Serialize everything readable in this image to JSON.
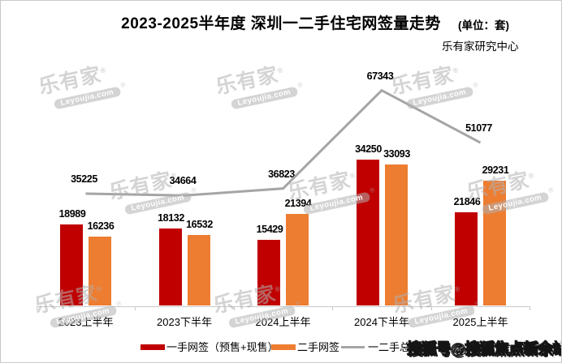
{
  "header": {
    "title": "2023-2025半年度 深圳一二手住宅网签量走势",
    "unit_label": "(单位：套)",
    "source": "乐有家研究中心"
  },
  "chart_data": {
    "type": "bar+line",
    "title": "2023-2025半年度 深圳一二手住宅网签量走势",
    "unit": "套",
    "categories": [
      "2023上半年",
      "2023下半年",
      "2024上半年",
      "2024下半年",
      "2025上半年"
    ],
    "series": [
      {
        "name": "一手网签（预售+现售）",
        "kind": "bar",
        "color": "#c00000",
        "values": [
          18989,
          18132,
          15429,
          34250,
          21846
        ]
      },
      {
        "name": "二手网签",
        "kind": "bar",
        "color": "#ed7d31",
        "values": [
          16236,
          16532,
          21394,
          33093,
          29231
        ]
      },
      {
        "name": "一二手总网签",
        "kind": "line",
        "color": "#a5a5a5",
        "values": [
          35225,
          34664,
          36823,
          67343,
          51077
        ]
      }
    ],
    "grid": false,
    "legend_position": "bottom",
    "axis": {
      "x_baseline_visible": true,
      "y_axis_visible": false
    }
  },
  "colors": {
    "first_hand_bar": "#c00000",
    "second_hand_bar": "#ed7d31",
    "total_line": "#a5a5a5",
    "axis": "#c9c9c9"
  },
  "watermarks": {
    "brand_text": "乐有家",
    "brand_reg": "®",
    "brand_sub": "Leyoujia.com",
    "sohu": "搜狐号@搜狐焦点新余站"
  }
}
